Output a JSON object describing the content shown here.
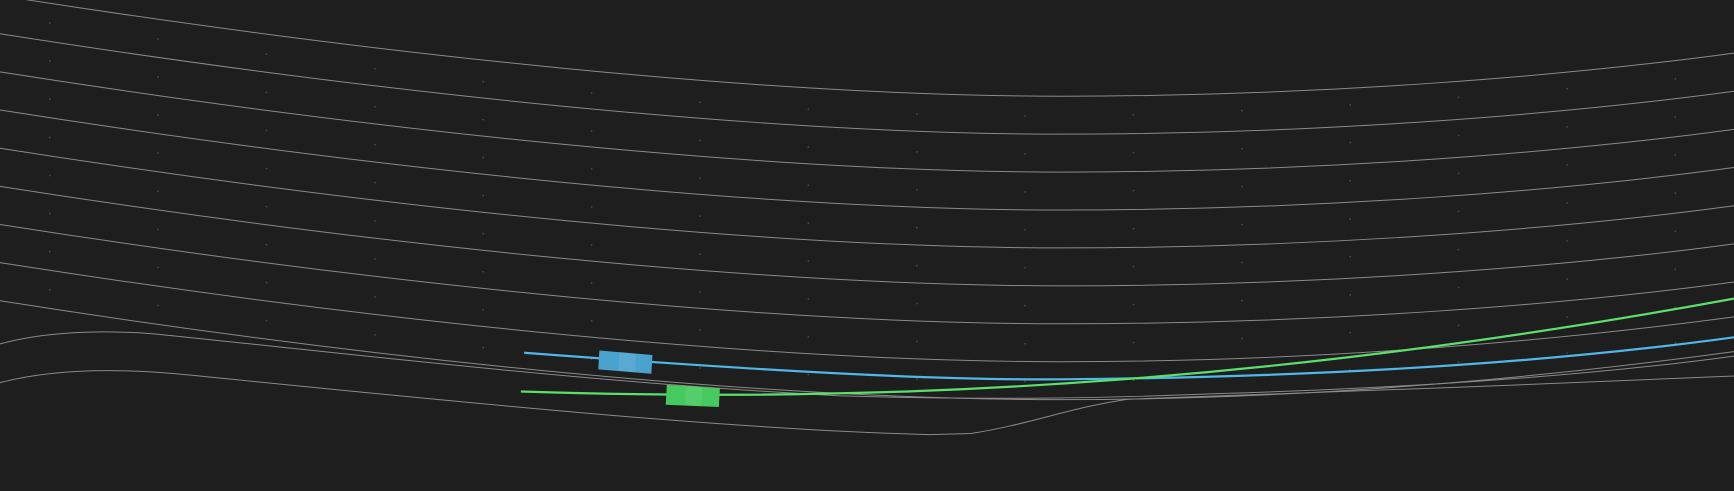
{
  "scene": {
    "background": "#1e1e1e",
    "lane_line_color": "#8a8a8a",
    "vehicles": [
      {
        "name": "blue-vehicle",
        "color": "#4aa3cf",
        "trajectory_color": "#4fb8e8"
      },
      {
        "name": "green-vehicle",
        "color": "#46c95e",
        "trajectory_color": "#5be06e"
      }
    ]
  }
}
